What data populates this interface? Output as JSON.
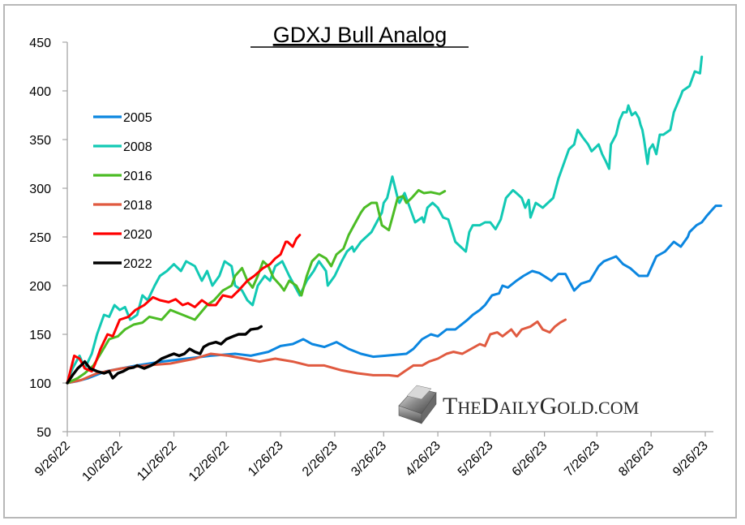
{
  "chart_data": {
    "type": "line",
    "title": "GDXJ Bull Analog",
    "xlabel": "",
    "ylabel": "",
    "ylim": [
      50,
      450
    ],
    "xlim_days": [
      0,
      370
    ],
    "yticks": [
      50,
      100,
      150,
      200,
      250,
      300,
      350,
      400,
      450
    ],
    "xticks": [
      {
        "day": 0,
        "label": "9/26/22"
      },
      {
        "day": 30,
        "label": "10/26/22"
      },
      {
        "day": 61,
        "label": "11/26/22"
      },
      {
        "day": 91,
        "label": "12/26/22"
      },
      {
        "day": 122,
        "label": "1/26/23"
      },
      {
        "day": 153,
        "label": "2/26/23"
      },
      {
        "day": 181,
        "label": "3/26/23"
      },
      {
        "day": 212,
        "label": "4/26/23"
      },
      {
        "day": 242,
        "label": "5/26/23"
      },
      {
        "day": 273,
        "label": "6/26/23"
      },
      {
        "day": 303,
        "label": "7/26/23"
      },
      {
        "day": 334,
        "label": "8/26/23"
      },
      {
        "day": 365,
        "label": "9/26/23"
      }
    ],
    "grid": false,
    "legend_position": "top-left",
    "series": [
      {
        "name": "2005",
        "color": "#0b86e0",
        "x": [
          0,
          6,
          12,
          22,
          31,
          40,
          54,
          68,
          82,
          96,
          105,
          115,
          122,
          129,
          129,
          135,
          140,
          147,
          154,
          161,
          168,
          175,
          182,
          194,
          198,
          203,
          208,
          212,
          217,
          222,
          227,
          229,
          232,
          236,
          239,
          243,
          247,
          249,
          252,
          257,
          261,
          266,
          270,
          277,
          281,
          285,
          290,
          294,
          299,
          304,
          307,
          314,
          318,
          322,
          327,
          332,
          337,
          342,
          347,
          351,
          355,
          356,
          360,
          363,
          366,
          369,
          371,
          374
        ],
        "y": [
          100,
          102,
          105,
          112,
          115,
          118,
          122,
          125,
          128,
          130,
          128,
          132,
          138,
          140,
          140,
          145,
          140,
          137,
          142,
          135,
          130,
          127,
          128,
          130,
          135,
          145,
          150,
          148,
          155,
          155,
          162,
          165,
          170,
          175,
          180,
          190,
          192,
          200,
          198,
          205,
          210,
          215,
          213,
          205,
          212,
          212,
          195,
          202,
          205,
          220,
          225,
          230,
          222,
          218,
          210,
          210,
          230,
          235,
          245,
          240,
          250,
          255,
          262,
          265,
          272,
          278,
          282,
          282
        ]
      },
      {
        "name": "2008",
        "color": "#12c9b4",
        "x": [
          0,
          3,
          7,
          10,
          14,
          17,
          21,
          24,
          27,
          30,
          33,
          36,
          40,
          43,
          46,
          50,
          53,
          57,
          61,
          65,
          68,
          73,
          77,
          80,
          83,
          87,
          90,
          94,
          96,
          100,
          103,
          106,
          109,
          113,
          116,
          119,
          123,
          127,
          130,
          133,
          137,
          141,
          144,
          148,
          149,
          153,
          157,
          160,
          163,
          164,
          168,
          171,
          174,
          177,
          180,
          181,
          183,
          186,
          189,
          190,
          193,
          196,
          199,
          203,
          204,
          206,
          209,
          212,
          215,
          218,
          222,
          225,
          228,
          230,
          232,
          236,
          239,
          242,
          245,
          248,
          251,
          255,
          257,
          260,
          262,
          264,
          265,
          268,
          272,
          275,
          278,
          281,
          285,
          287,
          290,
          292,
          295,
          298,
          300,
          304,
          306,
          308,
          310,
          311,
          314,
          316,
          318,
          320,
          321,
          323,
          325,
          327,
          328,
          329,
          330,
          332,
          333,
          335,
          337,
          339,
          341,
          345,
          347,
          351,
          352,
          356,
          359,
          362,
          363
        ],
        "y": [
          100,
          115,
          128,
          115,
          130,
          150,
          170,
          168,
          180,
          175,
          178,
          165,
          170,
          190,
          185,
          200,
          210,
          215,
          222,
          215,
          225,
          220,
          205,
          215,
          200,
          210,
          225,
          220,
          200,
          195,
          185,
          180,
          200,
          210,
          205,
          220,
          225,
          210,
          200,
          190,
          205,
          215,
          225,
          215,
          200,
          210,
          225,
          235,
          240,
          235,
          245,
          250,
          255,
          265,
          275,
          285,
          290,
          312,
          290,
          285,
          295,
          280,
          265,
          270,
          265,
          280,
          285,
          280,
          270,
          268,
          245,
          240,
          235,
          255,
          262,
          262,
          265,
          265,
          258,
          268,
          290,
          298,
          295,
          290,
          280,
          288,
          270,
          285,
          280,
          285,
          290,
          310,
          330,
          340,
          345,
          360,
          352,
          345,
          338,
          345,
          335,
          328,
          320,
          345,
          355,
          370,
          378,
          378,
          385,
          375,
          378,
          372,
          365,
          360,
          350,
          325,
          340,
          345,
          335,
          355,
          355,
          360,
          378,
          395,
          400,
          405,
          420,
          418,
          435
        ]
      },
      {
        "name": "2016",
        "color": "#4cbc25",
        "x": [
          0,
          6,
          10,
          15,
          19,
          24,
          29,
          33,
          38,
          43,
          47,
          54,
          59,
          66,
          73,
          80,
          84,
          89,
          94,
          96,
          100,
          103,
          106,
          109,
          112,
          115,
          118,
          122,
          124,
          127,
          131,
          134,
          137,
          140,
          144,
          148,
          151,
          154,
          158,
          161,
          164,
          168,
          170,
          174,
          177,
          180,
          184,
          186,
          189,
          192,
          194,
          197,
          201,
          204,
          208,
          213,
          216
        ],
        "y": [
          100,
          105,
          110,
          118,
          130,
          145,
          148,
          155,
          160,
          162,
          168,
          165,
          175,
          170,
          165,
          180,
          185,
          195,
          200,
          210,
          218,
          205,
          198,
          210,
          225,
          220,
          208,
          200,
          195,
          205,
          200,
          190,
          210,
          225,
          232,
          228,
          220,
          232,
          238,
          252,
          262,
          275,
          280,
          285,
          285,
          262,
          257,
          270,
          290,
          292,
          285,
          290,
          298,
          295,
          296,
          294,
          297
        ]
      },
      {
        "name": "2018",
        "color": "#e05a40",
        "x": [
          0,
          8,
          17,
          31,
          45,
          59,
          73,
          82,
          92,
          101,
          110,
          119,
          129,
          138,
          147,
          157,
          166,
          175,
          184,
          189,
          193,
          198,
          203,
          207,
          212,
          217,
          221,
          226,
          231,
          236,
          239,
          242,
          246,
          249,
          254,
          257,
          260,
          265,
          269,
          272,
          276,
          279,
          282,
          285
        ],
        "y": [
          100,
          103,
          110,
          115,
          118,
          120,
          125,
          130,
          128,
          125,
          122,
          125,
          122,
          118,
          118,
          113,
          110,
          108,
          108,
          107,
          112,
          118,
          118,
          122,
          125,
          130,
          132,
          130,
          135,
          140,
          138,
          150,
          152,
          148,
          155,
          148,
          155,
          158,
          163,
          155,
          152,
          158,
          162,
          165
        ]
      },
      {
        "name": "2020",
        "color": "#ff0000",
        "x": [
          0,
          4,
          7,
          10,
          14,
          16,
          19,
          23,
          26,
          30,
          35,
          39,
          44,
          49,
          53,
          58,
          62,
          66,
          69,
          73,
          77,
          81,
          85,
          89,
          94,
          98,
          103,
          107,
          112,
          116,
          119,
          122,
          125,
          126,
          129,
          131,
          133
        ],
        "y": [
          100,
          128,
          125,
          115,
          112,
          120,
          135,
          150,
          148,
          165,
          168,
          175,
          180,
          188,
          185,
          183,
          186,
          180,
          182,
          178,
          185,
          180,
          180,
          190,
          188,
          195,
          205,
          210,
          218,
          222,
          228,
          232,
          245,
          245,
          240,
          248,
          252
        ]
      },
      {
        "name": "2022",
        "color": "#000000",
        "x": [
          0,
          3,
          6,
          9,
          10,
          13,
          17,
          21,
          24,
          26,
          29,
          32,
          35,
          38,
          40,
          44,
          48,
          50,
          54,
          58,
          61,
          64,
          67,
          70,
          73,
          76,
          78,
          81,
          85,
          88,
          91,
          95,
          98,
          102,
          105,
          109,
          111
        ],
        "y": [
          100,
          108,
          115,
          120,
          122,
          115,
          112,
          110,
          112,
          105,
          110,
          112,
          115,
          116,
          118,
          115,
          118,
          120,
          125,
          128,
          130,
          128,
          130,
          135,
          132,
          130,
          137,
          140,
          142,
          140,
          145,
          148,
          150,
          150,
          155,
          156,
          158
        ]
      }
    ]
  },
  "watermark": {
    "text": "TheDailyGold.com",
    "display": "THEDAILYGOLD.COM"
  }
}
